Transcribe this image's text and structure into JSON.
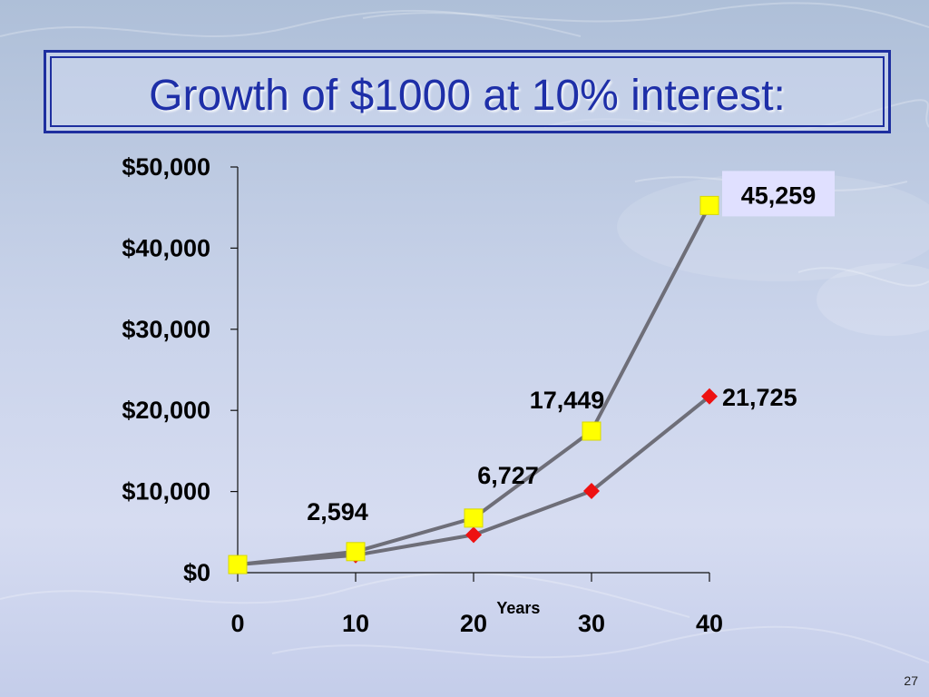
{
  "slide": {
    "title": "Growth of $1000 at 10% interest:",
    "page_number": "27"
  },
  "chart_data": {
    "type": "line",
    "x": [
      0,
      10,
      20,
      30,
      40
    ],
    "xlabel": "Years",
    "ylabel": "",
    "ylim": [
      0,
      50000
    ],
    "xlim": [
      0,
      40
    ],
    "ytick_labels": [
      "$0",
      "$10,000",
      "$20,000",
      "$30,000",
      "$40,000",
      "$50,000"
    ],
    "ytick_values": [
      0,
      10000,
      20000,
      30000,
      40000,
      50000
    ],
    "xtick_labels": [
      "0",
      "10",
      "20",
      "30",
      "40"
    ],
    "grid": false,
    "series": [
      {
        "values": [
          1000,
          2594,
          6727,
          17449,
          45259
        ],
        "marker": "square",
        "marker_color": "#ffff00",
        "line_color": "#6e6e78",
        "data_labels": [
          "",
          "2,594",
          "6,727",
          "17,449",
          "45,259"
        ]
      },
      {
        "values": [
          1000,
          2159,
          4661,
          10063,
          21725
        ],
        "marker": "diamond",
        "marker_color": "#ee1111",
        "line_color": "#6e6e78",
        "data_labels": [
          "",
          "",
          "",
          "",
          "21,725"
        ]
      }
    ],
    "label_highlight_color": "#e0e0ff"
  }
}
